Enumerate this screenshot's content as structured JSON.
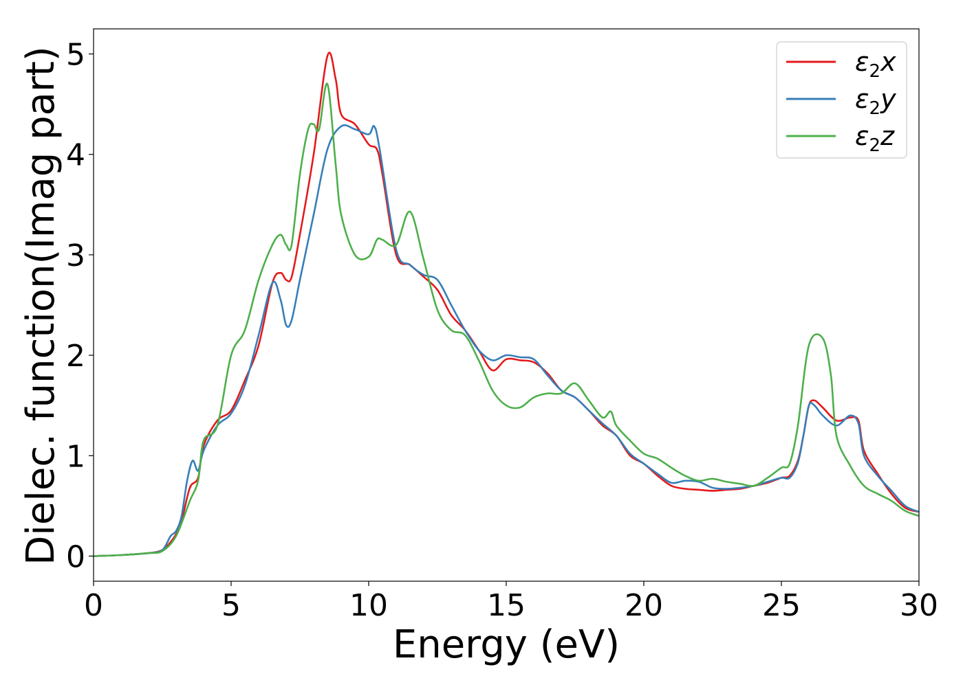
{
  "chart_data": {
    "type": "line",
    "title": "",
    "xlabel": "Energy (eV)",
    "ylabel": "Dielec. function(Imag part)",
    "xlim": [
      0,
      30
    ],
    "ylim": [
      -0.25,
      5.25
    ],
    "xticks": [
      0,
      5,
      10,
      15,
      20,
      25,
      30
    ],
    "yticks": [
      0,
      1,
      2,
      3,
      4,
      5
    ],
    "grid": false,
    "legend_position": "top-right",
    "series": [
      {
        "name": "ε₂x",
        "legend_base": "ε",
        "legend_sub": "2",
        "legend_suffix": "x",
        "color": "#e41a1c",
        "x": [
          0,
          1,
          2,
          2.5,
          2.8,
          3.0,
          3.2,
          3.5,
          3.8,
          4.0,
          4.5,
          5.0,
          5.5,
          6.0,
          6.5,
          6.8,
          7.0,
          7.2,
          7.5,
          8.0,
          8.5,
          8.8,
          9.0,
          9.5,
          10.0,
          10.3,
          10.5,
          11.0,
          11.5,
          12.0,
          12.5,
          13.0,
          13.5,
          14.0,
          14.5,
          15.0,
          15.5,
          16.0,
          16.5,
          17.0,
          17.5,
          18.0,
          18.5,
          19.0,
          19.5,
          20.0,
          20.5,
          21.0,
          21.5,
          22.0,
          22.5,
          23.0,
          23.5,
          24.0,
          24.5,
          25.0,
          25.3,
          25.6,
          25.8,
          26.0,
          26.2,
          26.5,
          27.0,
          27.5,
          27.8,
          28.0,
          28.5,
          29.0,
          29.5,
          30.0
        ],
        "y": [
          0,
          0.01,
          0.03,
          0.06,
          0.14,
          0.22,
          0.35,
          0.68,
          0.78,
          1.1,
          1.35,
          1.45,
          1.75,
          2.1,
          2.72,
          2.82,
          2.75,
          2.78,
          3.2,
          4.0,
          4.98,
          4.75,
          4.4,
          4.3,
          4.1,
          4.05,
          3.8,
          3.0,
          2.9,
          2.78,
          2.65,
          2.4,
          2.25,
          2.05,
          1.85,
          1.96,
          1.95,
          1.93,
          1.82,
          1.65,
          1.58,
          1.45,
          1.3,
          1.2,
          1.0,
          0.92,
          0.8,
          0.7,
          0.67,
          0.66,
          0.65,
          0.66,
          0.67,
          0.7,
          0.73,
          0.78,
          0.8,
          0.95,
          1.2,
          1.5,
          1.55,
          1.48,
          1.35,
          1.38,
          1.35,
          1.05,
          0.82,
          0.62,
          0.48,
          0.44
        ]
      },
      {
        "name": "ε₂y",
        "legend_base": "ε",
        "legend_sub": "2",
        "legend_suffix": "y",
        "color": "#377eb8",
        "x": [
          0,
          1,
          2,
          2.5,
          2.8,
          3.0,
          3.2,
          3.4,
          3.6,
          3.8,
          4.0,
          4.5,
          5.0,
          5.5,
          6.0,
          6.5,
          6.8,
          7.0,
          7.2,
          7.5,
          8.0,
          8.5,
          9.0,
          9.5,
          10.0,
          10.2,
          10.4,
          11.0,
          11.5,
          12.0,
          12.5,
          13.0,
          13.5,
          14.0,
          14.5,
          15.0,
          15.5,
          16.0,
          16.5,
          17.0,
          17.5,
          18.0,
          18.5,
          19.0,
          19.5,
          20.0,
          20.5,
          21.0,
          21.5,
          22.0,
          22.5,
          23.0,
          23.5,
          24.0,
          24.5,
          25.0,
          25.3,
          25.6,
          25.8,
          26.0,
          26.2,
          26.5,
          27.0,
          27.5,
          27.8,
          28.0,
          28.5,
          29.0,
          29.5,
          30.0
        ],
        "y": [
          0,
          0.01,
          0.03,
          0.06,
          0.2,
          0.25,
          0.4,
          0.75,
          0.95,
          0.85,
          1.05,
          1.3,
          1.42,
          1.7,
          2.2,
          2.72,
          2.55,
          2.3,
          2.35,
          2.75,
          3.4,
          4.05,
          4.28,
          4.25,
          4.2,
          4.28,
          4.05,
          3.05,
          2.9,
          2.8,
          2.75,
          2.5,
          2.25,
          2.05,
          1.95,
          2.0,
          1.98,
          1.96,
          1.8,
          1.65,
          1.58,
          1.45,
          1.32,
          1.2,
          1.02,
          0.92,
          0.82,
          0.73,
          0.75,
          0.74,
          0.68,
          0.67,
          0.68,
          0.7,
          0.74,
          0.78,
          0.78,
          0.93,
          1.2,
          1.5,
          1.5,
          1.4,
          1.3,
          1.4,
          1.32,
          1.0,
          0.8,
          0.65,
          0.5,
          0.44
        ]
      },
      {
        "name": "ε₂z",
        "legend_base": "ε",
        "legend_sub": "2",
        "legend_suffix": "z",
        "color": "#4daf4a",
        "x": [
          0,
          1,
          2,
          2.5,
          3.0,
          3.5,
          3.8,
          4.0,
          4.5,
          5.0,
          5.5,
          6.0,
          6.5,
          6.8,
          7.0,
          7.2,
          7.5,
          7.8,
          8.0,
          8.2,
          8.5,
          8.8,
          9.0,
          9.5,
          10.0,
          10.3,
          10.5,
          11.0,
          11.5,
          12.0,
          12.5,
          13.0,
          13.5,
          14.0,
          14.5,
          15.0,
          15.5,
          16.0,
          16.5,
          17.0,
          17.5,
          18.0,
          18.5,
          18.8,
          19.0,
          19.5,
          20.0,
          20.5,
          21.0,
          21.5,
          22.0,
          22.5,
          23.0,
          23.5,
          24.0,
          24.5,
          25.0,
          25.3,
          25.6,
          26.0,
          26.5,
          26.8,
          27.0,
          27.5,
          28.0,
          28.5,
          29.0,
          29.5,
          30.0
        ],
        "y": [
          0,
          0.01,
          0.03,
          0.05,
          0.2,
          0.55,
          0.75,
          1.15,
          1.3,
          2.0,
          2.25,
          2.75,
          3.1,
          3.2,
          3.1,
          3.1,
          3.8,
          4.25,
          4.3,
          4.25,
          4.7,
          3.9,
          3.4,
          3.0,
          2.98,
          3.15,
          3.15,
          3.1,
          3.43,
          2.95,
          2.45,
          2.25,
          2.2,
          1.95,
          1.65,
          1.5,
          1.48,
          1.58,
          1.62,
          1.62,
          1.72,
          1.55,
          1.38,
          1.44,
          1.3,
          1.15,
          1.02,
          0.97,
          0.88,
          0.8,
          0.75,
          0.77,
          0.74,
          0.72,
          0.7,
          0.78,
          0.88,
          0.92,
          1.3,
          2.1,
          2.17,
          1.8,
          1.2,
          0.9,
          0.7,
          0.62,
          0.55,
          0.45,
          0.4
        ]
      }
    ]
  }
}
